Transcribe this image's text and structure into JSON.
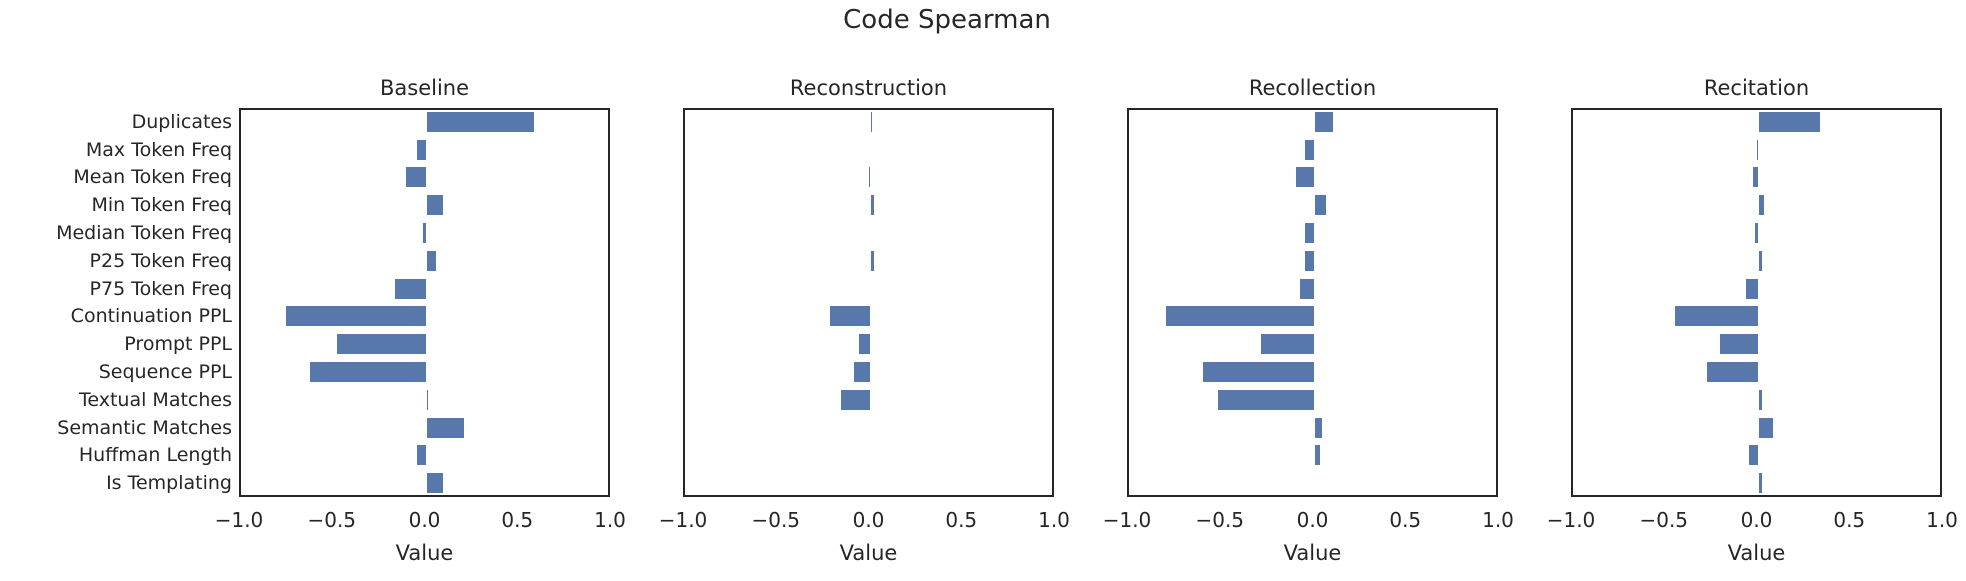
{
  "title": "Code Spearman",
  "chart_data": {
    "type": "bar",
    "orientation": "horizontal",
    "title": "Code Spearman",
    "xlabel": "Value",
    "xlim": [
      -1.0,
      1.0
    ],
    "xtick_values": [
      -1.0,
      -0.5,
      0.0,
      0.5,
      1.0
    ],
    "xtick_labels": [
      "−1.0",
      "−0.5",
      "0.0",
      "0.5",
      "1.0"
    ],
    "grid": false,
    "legend": "none",
    "bar_color": "#5878ab",
    "categories": [
      "Duplicates",
      "Max Token Freq",
      "Mean Token Freq",
      "Min Token Freq",
      "Median Token Freq",
      "P25 Token Freq",
      "P75 Token Freq",
      "Continuation PPL",
      "Prompt PPL",
      "Sequence PPL",
      "Textual Matches",
      "Semantic Matches",
      "Huffman Length",
      "Is Templating"
    ],
    "panels": [
      {
        "title": "Baseline",
        "values": [
          0.58,
          -0.05,
          -0.11,
          0.09,
          -0.02,
          0.05,
          -0.17,
          -0.76,
          -0.48,
          -0.63,
          0.01,
          0.2,
          -0.05,
          0.09
        ]
      },
      {
        "title": "Reconstruction",
        "values": [
          0.01,
          0.0,
          -0.01,
          0.02,
          0.0,
          0.02,
          0.0,
          -0.22,
          -0.06,
          -0.09,
          -0.16,
          0.0,
          0.0,
          0.0
        ]
      },
      {
        "title": "Recollection",
        "values": [
          0.1,
          -0.05,
          -0.1,
          0.06,
          -0.05,
          -0.05,
          -0.08,
          -0.8,
          -0.29,
          -0.6,
          -0.52,
          0.04,
          0.03,
          0.0
        ]
      },
      {
        "title": "Recitation",
        "values": [
          0.33,
          -0.01,
          -0.03,
          0.03,
          -0.02,
          0.02,
          -0.07,
          -0.45,
          -0.21,
          -0.28,
          0.02,
          0.08,
          -0.05,
          0.02
        ]
      }
    ]
  }
}
